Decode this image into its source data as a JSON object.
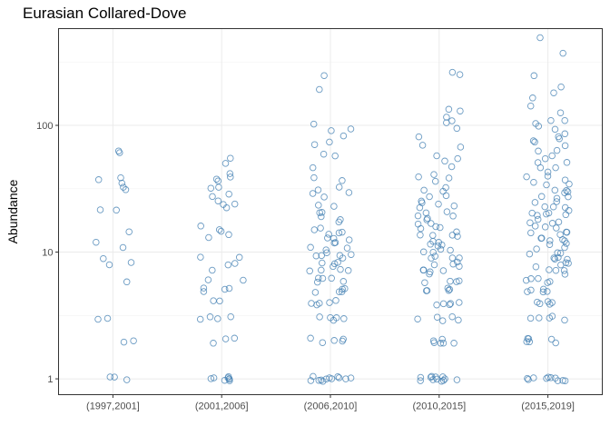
{
  "chart_data": {
    "type": "scatter",
    "title": "Eurasian Collared-Dove",
    "xlabel": "",
    "ylabel": "Abundance",
    "y_scale": "log10",
    "ylim": [
      0.75,
      580
    ],
    "y_ticks": [
      1,
      10,
      100
    ],
    "y_tick_labels": [
      "1",
      "10",
      "100"
    ],
    "grid": true,
    "point_color": "#4682B4",
    "categories": [
      "(1997,2001]",
      "(2001,2006]",
      "(2006,2010]",
      "(2010,2015]",
      "(2015,2019]"
    ],
    "series": [
      {
        "category": "(1997,2001]",
        "values": [
          62,
          60,
          38,
          36,
          34,
          33,
          32,
          22,
          21,
          14,
          12,
          11,
          9,
          8,
          8,
          6,
          3,
          3,
          2,
          2,
          1,
          1,
          1
        ]
      },
      {
        "category": "(2001,2006]",
        "values": [
          57,
          52,
          42,
          40,
          38,
          35,
          34,
          33,
          30,
          28,
          26,
          24,
          23,
          22,
          16,
          15,
          14,
          14,
          13,
          9,
          9,
          8,
          8,
          7,
          6,
          6,
          5,
          5,
          5,
          5,
          4,
          4,
          3,
          3,
          3,
          3,
          2,
          2,
          2,
          1,
          1,
          1,
          1,
          1,
          1,
          1,
          1
        ]
      },
      {
        "category": "(2006,2010]",
        "values": [
          250,
          195,
          102,
          92,
          88,
          84,
          74,
          68,
          62,
          58,
          48,
          40,
          36,
          33,
          31,
          30,
          28,
          26,
          24,
          22,
          20,
          20,
          19,
          18,
          17,
          16,
          15,
          15,
          14,
          14,
          13,
          13,
          12,
          12,
          12,
          11,
          11,
          10,
          10,
          10,
          9,
          9,
          9,
          9,
          8,
          8,
          8,
          8,
          7,
          7,
          7,
          7,
          6,
          6,
          6,
          6,
          6,
          5,
          5,
          5,
          5,
          5,
          4,
          4,
          4,
          4,
          4,
          3,
          3,
          3,
          3,
          3,
          2,
          2,
          2,
          2,
          2,
          1,
          1,
          1,
          1,
          1,
          1,
          1,
          1,
          1,
          1,
          1,
          1
        ]
      },
      {
        "category": "(2010,2015]",
        "values": [
          260,
          245,
          130,
          128,
          120,
          110,
          105,
          95,
          80,
          72,
          68,
          60,
          55,
          50,
          46,
          42,
          40,
          38,
          35,
          33,
          32,
          30,
          29,
          28,
          26,
          25,
          24,
          23,
          22,
          21,
          20,
          20,
          19,
          18,
          18,
          17,
          17,
          16,
          16,
          15,
          15,
          14,
          14,
          13,
          13,
          12,
          12,
          12,
          11,
          11,
          11,
          10,
          10,
          10,
          9,
          9,
          9,
          9,
          8,
          8,
          8,
          8,
          7,
          7,
          7,
          7,
          7,
          6,
          6,
          6,
          6,
          5,
          5,
          5,
          5,
          5,
          4,
          4,
          4,
          4,
          4,
          3,
          3,
          3,
          3,
          3,
          2,
          2,
          2,
          2,
          2,
          2,
          1,
          1,
          1,
          1,
          1,
          1,
          1,
          1,
          1,
          1,
          1,
          1
        ]
      },
      {
        "category": "(2015,2019]",
        "values": [
          500,
          380,
          245,
          195,
          175,
          160,
          140,
          130,
          110,
          108,
          100,
          95,
          90,
          85,
          82,
          80,
          78,
          75,
          70,
          65,
          62,
          58,
          55,
          52,
          50,
          48,
          45,
          42,
          40,
          38,
          36,
          35,
          34,
          33,
          32,
          31,
          30,
          29,
          28,
          27,
          26,
          25,
          24,
          23,
          22,
          22,
          21,
          21,
          20,
          20,
          19,
          19,
          18,
          18,
          17,
          17,
          16,
          16,
          15,
          15,
          14,
          14,
          14,
          13,
          13,
          13,
          12,
          12,
          12,
          11,
          11,
          11,
          10,
          10,
          10,
          9,
          9,
          9,
          9,
          8,
          8,
          8,
          8,
          7,
          7,
          7,
          7,
          6,
          6,
          6,
          6,
          6,
          5,
          5,
          5,
          5,
          5,
          4,
          4,
          4,
          4,
          4,
          3,
          3,
          3,
          3,
          3,
          2,
          2,
          2,
          2,
          2,
          2,
          1,
          1,
          1,
          1,
          1,
          1,
          1,
          1,
          1,
          1
        ]
      }
    ]
  }
}
